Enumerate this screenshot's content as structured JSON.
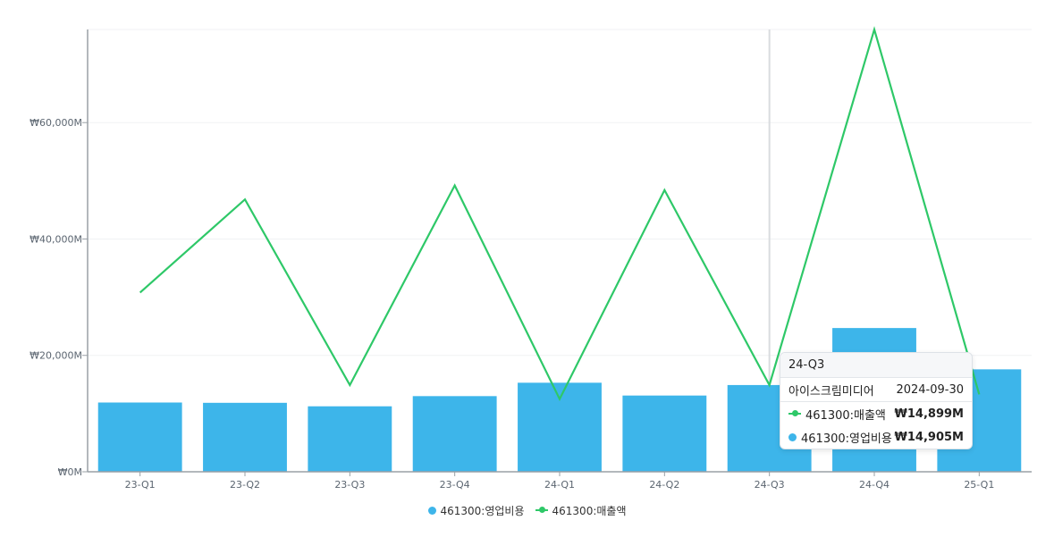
{
  "colors": {
    "bar": "#3db5ea",
    "line": "#2ec868",
    "axis": "#9aa0a6",
    "grid": "#f0f2f4"
  },
  "chart_data": {
    "type": "bar",
    "categories": [
      "23-Q1",
      "23-Q2",
      "23-Q3",
      "23-Q4",
      "24-Q1",
      "24-Q2",
      "24-Q3",
      "24-Q4",
      "25-Q1"
    ],
    "y_ticks": [
      0,
      20000,
      40000,
      60000
    ],
    "y_tick_labels": [
      "₩0M",
      "₩20,000M",
      "₩40,000M",
      "₩60,000M"
    ],
    "ylim": [
      0,
      76000
    ],
    "grid": true,
    "legend_position": "bottom-center",
    "series": [
      {
        "name": "461300:영업비용",
        "type": "bar",
        "values": [
          11900,
          11850,
          11250,
          13000,
          15300,
          13100,
          14905,
          24700,
          17600
        ]
      },
      {
        "name": "461300:매출액",
        "type": "line",
        "values": [
          30800,
          46800,
          14900,
          49200,
          12500,
          48400,
          14899,
          76000,
          13300
        ]
      }
    ],
    "highlight_category": "24-Q3"
  },
  "tooltip": {
    "title": "24-Q3",
    "company": "아이스크림미디어",
    "date": "2024-09-30",
    "rows": [
      {
        "marker": "line",
        "label": "461300:매출액",
        "value": "₩14,899M"
      },
      {
        "marker": "dot",
        "label": "461300:영업비용",
        "value": "₩14,905M"
      }
    ]
  }
}
